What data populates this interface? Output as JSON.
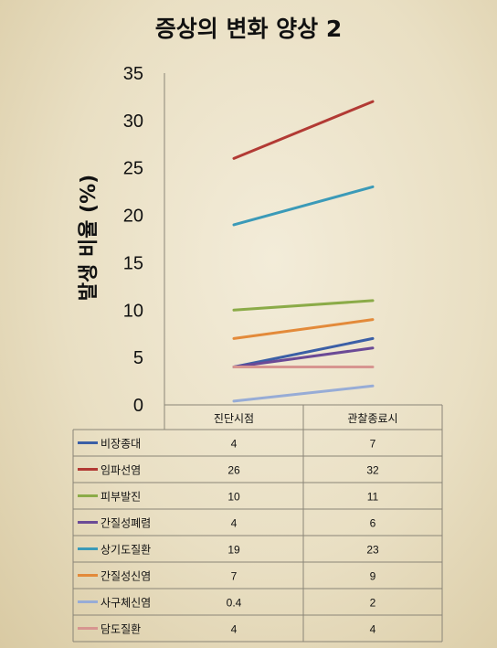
{
  "chart_data": {
    "type": "line",
    "title": "증상의 변화 양상 2",
    "ylabel": "발생 비율 (%)",
    "xlabel": "",
    "categories": [
      "진단시점",
      "관찰종료시"
    ],
    "ylim": [
      0,
      35
    ],
    "yticks": [
      0,
      5,
      10,
      15,
      20,
      25,
      30,
      35
    ],
    "grid": false,
    "legend": "table-below",
    "series": [
      {
        "name": "비장종대",
        "color": "#3b5fa6",
        "values": [
          4,
          7
        ],
        "labels": [
          "4",
          "7"
        ]
      },
      {
        "name": "임파선염",
        "color": "#b23a34",
        "values": [
          26,
          32
        ],
        "labels": [
          "26",
          "32"
        ]
      },
      {
        "name": "피부발진",
        "color": "#8bab48",
        "values": [
          10,
          11
        ],
        "labels": [
          "10",
          "11"
        ]
      },
      {
        "name": "간질성폐렴",
        "color": "#6b4a96",
        "values": [
          4,
          6
        ],
        "labels": [
          "4",
          "6"
        ]
      },
      {
        "name": "상기도질환",
        "color": "#3b9ab8",
        "values": [
          19,
          23
        ],
        "labels": [
          "19",
          "23"
        ]
      },
      {
        "name": "간질성신염",
        "color": "#e38a3a",
        "values": [
          7,
          9
        ],
        "labels": [
          "7",
          "9"
        ]
      },
      {
        "name": "사구체신염",
        "color": "#97acd6",
        "values": [
          0.4,
          2
        ],
        "labels": [
          "0.4",
          "2"
        ]
      },
      {
        "name": "담도질환",
        "color": "#d79590",
        "values": [
          4,
          4
        ],
        "labels": [
          "4",
          "4"
        ]
      }
    ]
  }
}
